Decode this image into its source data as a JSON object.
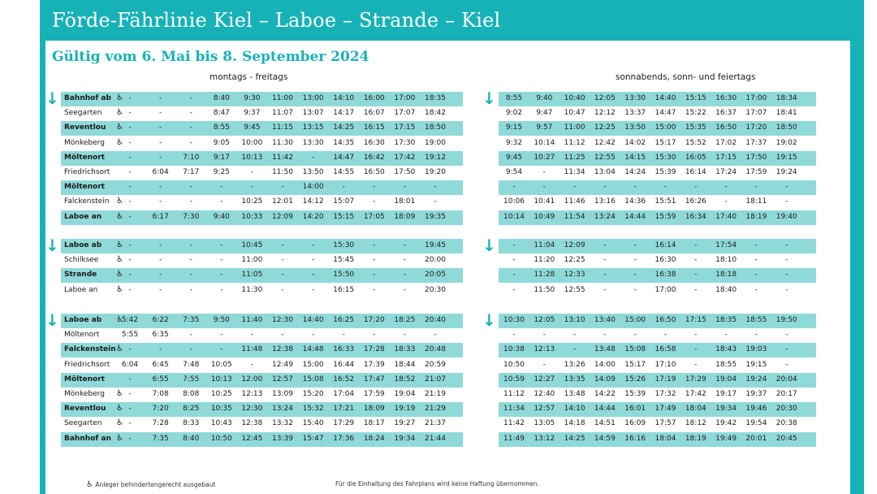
{
  "title": "Förde-Fährlinie Kiel – Laboe – Strande – Kiel",
  "subtitle": "Gültig vom 6. Mai bis 8. September 2024",
  "weekday_label": "montags - freitags",
  "weekend_label": "sonnabends, sonn- und feiertags",
  "wheelchair_symbol": "♿",
  "arrow_symbol": "↓",
  "footer": {
    "legend": "Anleger behindertengerecht ausgebaut",
    "disclaimer": "Für die Einhaltung des Fahrplans wird keine Haftung übernommen."
  },
  "timetable": [
    {
      "rows": [
        {
          "stop": "Bahnhof ab",
          "hl": true,
          "wc": true,
          "weekday": [
            "-",
            "-",
            "-",
            "8:40",
            "9:30",
            "11:00",
            "13:00",
            "14:10",
            "16:00",
            "17:00",
            "18:35"
          ],
          "weekend": [
            "8:55",
            "9:40",
            "10:40",
            "12:05",
            "13:30",
            "14:40",
            "15:15",
            "16:30",
            "17:00",
            "18:34"
          ]
        },
        {
          "stop": "Seegarten",
          "hl": false,
          "wc": true,
          "weekday": [
            "-",
            "-",
            "-",
            "8:47",
            "9:37",
            "11:07",
            "13:07",
            "14:17",
            "16:07",
            "17:07",
            "18:42"
          ],
          "weekend": [
            "9:02",
            "9:47",
            "10:47",
            "12:12",
            "13:37",
            "14:47",
            "15:22",
            "16:37",
            "17:07",
            "18:41"
          ]
        },
        {
          "stop": "Reventlou",
          "hl": true,
          "wc": true,
          "weekday": [
            "-",
            "-",
            "-",
            "8:55",
            "9:45",
            "11:15",
            "13:15",
            "14:25",
            "16:15",
            "17:15",
            "18:50"
          ],
          "weekend": [
            "9:15",
            "9:57",
            "11:00",
            "12:25",
            "13:50",
            "15:00",
            "15:35",
            "16:50",
            "17:20",
            "18:50"
          ]
        },
        {
          "stop": "Mönkeberg",
          "hl": false,
          "wc": true,
          "weekday": [
            "-",
            "-",
            "-",
            "9:05",
            "10:00",
            "11:30",
            "13:30",
            "14:35",
            "16:30",
            "17:30",
            "19:00"
          ],
          "weekend": [
            "9:32",
            "10:14",
            "11:12",
            "12:42",
            "14:02",
            "15:17",
            "15:52",
            "17:02",
            "17:37",
            "19:02"
          ]
        },
        {
          "stop": "Möltenort",
          "hl": true,
          "wc": false,
          "weekday": [
            "-",
            "-",
            "7:10",
            "9:17",
            "10:13",
            "11:42",
            "-",
            "14:47",
            "16:42",
            "17:42",
            "19:12"
          ],
          "weekend": [
            "9:45",
            "10:27",
            "11:25",
            "12:55",
            "14:15",
            "15:30",
            "16:05",
            "17:15",
            "17:50",
            "19:15"
          ]
        },
        {
          "stop": "Friedrichsort",
          "hl": false,
          "wc": false,
          "weekday": [
            "-",
            "6:04",
            "7:17",
            "9:25",
            "-",
            "11:50",
            "13:50",
            "14:55",
            "16:50",
            "17:50",
            "19:20"
          ],
          "weekend": [
            "9:54",
            "-",
            "11:34",
            "13:04",
            "14:24",
            "15:39",
            "16:14",
            "17:24",
            "17:59",
            "19:24"
          ]
        },
        {
          "stop": "Möltenort",
          "hl": true,
          "wc": false,
          "weekday": [
            "-",
            "-",
            "-",
            "-",
            "-",
            "-",
            "14:00",
            "-",
            "-",
            "-",
            "-"
          ],
          "weekend": [
            "-",
            "-",
            "-",
            "-",
            "-",
            "-",
            "-",
            "-",
            "-",
            "-"
          ]
        },
        {
          "stop": "Falckenstein",
          "hl": false,
          "wc": true,
          "weekday": [
            "-",
            "-",
            "-",
            "-",
            "10:25",
            "12:01",
            "14:12",
            "15:07",
            "-",
            "18:01",
            "-"
          ],
          "weekend": [
            "10:06",
            "10:41",
            "11:46",
            "13:16",
            "14:36",
            "15:51",
            "16:26",
            "-",
            "18:11",
            "-"
          ]
        },
        {
          "stop": "Laboe an",
          "hl": true,
          "wc": true,
          "weekday": [
            "-",
            "6:17",
            "7:30",
            "9:40",
            "10:33",
            "12:09",
            "14:20",
            "15:15",
            "17:05",
            "18:09",
            "19:35"
          ],
          "weekend": [
            "10:14",
            "10:49",
            "11:54",
            "13:24",
            "14:44",
            "15:59",
            "16:34",
            "17:40",
            "18:19",
            "19:40"
          ]
        }
      ]
    },
    {
      "rows": [
        {
          "stop": "Laboe ab",
          "hl": true,
          "wc": true,
          "weekday": [
            "-",
            "-",
            "-",
            "-",
            "10:45",
            "-",
            "-",
            "15:30",
            "-",
            "-",
            "19:45"
          ],
          "weekend": [
            "-",
            "11:04",
            "12:09",
            "-",
            "-",
            "16:14",
            "-",
            "17:54",
            "-",
            "-"
          ]
        },
        {
          "stop": "Schilksee",
          "hl": false,
          "wc": true,
          "weekday": [
            "-",
            "-",
            "-",
            "-",
            "11:00",
            "-",
            "-",
            "15:45",
            "-",
            "-",
            "20:00"
          ],
          "weekend": [
            "-",
            "11:20",
            "12:25",
            "-",
            "-",
            "16:30",
            "-",
            "18:10",
            "-",
            "-"
          ]
        },
        {
          "stop": "Strande",
          "hl": true,
          "wc": true,
          "weekday": [
            "-",
            "-",
            "-",
            "-",
            "11:05",
            "-",
            "-",
            "15:50",
            "-",
            "-",
            "20:05"
          ],
          "weekend": [
            "-",
            "11:28",
            "12:33",
            "-",
            "-",
            "16:38",
            "-",
            "18:18",
            "-",
            "-"
          ]
        },
        {
          "stop": "Laboe an",
          "hl": false,
          "wc": true,
          "weekday": [
            "-",
            "-",
            "-",
            "-",
            "11:30",
            "-",
            "-",
            "16:15",
            "-",
            "-",
            "20:30"
          ],
          "weekend": [
            "-",
            "11:50",
            "12:55",
            "-",
            "-",
            "17:00",
            "-",
            "18:40",
            "-",
            "-"
          ]
        }
      ]
    },
    {
      "rows": [
        {
          "stop": "Laboe ab",
          "hl": true,
          "wc": true,
          "weekday": [
            "5:42",
            "6:22",
            "7:35",
            "9:50",
            "11:40",
            "12:30",
            "14:40",
            "16:25",
            "17:20",
            "18:25",
            "20:40"
          ],
          "weekend": [
            "10:30",
            "12:05",
            "13:10",
            "13:40",
            "15:00",
            "16:50",
            "17:15",
            "18:35",
            "18:55",
            "19:50"
          ]
        },
        {
          "stop": "Möltenort",
          "hl": false,
          "wc": false,
          "weekday": [
            "5:55",
            "6:35",
            "-",
            "-",
            "-",
            "-",
            "-",
            "-",
            "-",
            "-",
            "-"
          ],
          "weekend": [
            "-",
            "-",
            "-",
            "-",
            "-",
            "-",
            "-",
            "-",
            "-",
            "-"
          ]
        },
        {
          "stop": "Falckenstein",
          "hl": true,
          "wc": true,
          "weekday": [
            "-",
            "-",
            "-",
            "-",
            "11:48",
            "12:38",
            "14:48",
            "16:33",
            "17:28",
            "18:33",
            "20:48"
          ],
          "weekend": [
            "10:38",
            "12:13",
            "-",
            "13:48",
            "15:08",
            "16:58",
            "-",
            "18:43",
            "19:03",
            "-"
          ]
        },
        {
          "stop": "Friedrichsort",
          "hl": false,
          "wc": false,
          "weekday": [
            "6:04",
            "6:45",
            "7:48",
            "10:05",
            "-",
            "12:49",
            "15:00",
            "16:44",
            "17:39",
            "18:44",
            "20:59"
          ],
          "weekend": [
            "10:50",
            "-",
            "13:26",
            "14:00",
            "15:17",
            "17:10",
            "-",
            "18:55",
            "19:15",
            "-"
          ]
        },
        {
          "stop": "Möltenort",
          "hl": true,
          "wc": false,
          "weekday": [
            "-",
            "6:55",
            "7:55",
            "10:13",
            "12:00",
            "12:57",
            "15:08",
            "16:52",
            "17:47",
            "18:52",
            "21:07"
          ],
          "weekend": [
            "10:59",
            "12:27",
            "13:35",
            "14:09",
            "15:26",
            "17:19",
            "17:29",
            "19:04",
            "19:24",
            "20:04"
          ]
        },
        {
          "stop": "Mönkeberg",
          "hl": false,
          "wc": true,
          "weekday": [
            "-",
            "7:08",
            "8:08",
            "10:25",
            "12:13",
            "13:09",
            "15:20",
            "17:04",
            "17:59",
            "19:04",
            "21:19"
          ],
          "weekend": [
            "11:12",
            "12:40",
            "13:48",
            "14:22",
            "15:39",
            "17:32",
            "17:42",
            "19:17",
            "19:37",
            "20:17"
          ]
        },
        {
          "stop": "Reventlou",
          "hl": true,
          "wc": true,
          "weekday": [
            "-",
            "7:20",
            "8:25",
            "10:35",
            "12:30",
            "13:24",
            "15:32",
            "17:21",
            "18:09",
            "19:19",
            "21:29"
          ],
          "weekend": [
            "11:34",
            "12:57",
            "14:10",
            "14:44",
            "16:01",
            "17:49",
            "18:04",
            "19:34",
            "19:46",
            "20:30"
          ]
        },
        {
          "stop": "Seegarten",
          "hl": false,
          "wc": true,
          "weekday": [
            "-",
            "7:28",
            "8:33",
            "10:43",
            "12:38",
            "13:32",
            "15:40",
            "17:29",
            "18:17",
            "19:27",
            "21:37"
          ],
          "weekend": [
            "11:42",
            "13:05",
            "14:18",
            "14:51",
            "16:09",
            "17:57",
            "18:12",
            "19:42",
            "19:54",
            "20:38"
          ]
        },
        {
          "stop": "Bahnhof an",
          "hl": true,
          "wc": true,
          "weekday": [
            "-",
            "7:35",
            "8:40",
            "10:50",
            "12:45",
            "13:39",
            "15:47",
            "17:36",
            "18:24",
            "19:34",
            "21:44"
          ],
          "weekend": [
            "11:49",
            "13:12",
            "14:25",
            "14:59",
            "16:16",
            "18:04",
            "18:19",
            "19:49",
            "20:01",
            "20:45"
          ]
        }
      ]
    }
  ]
}
